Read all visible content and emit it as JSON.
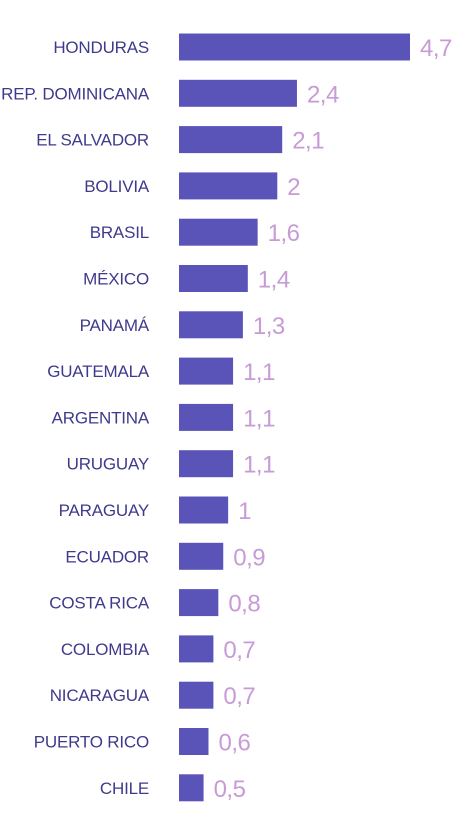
{
  "chart_data": {
    "type": "bar",
    "orientation": "horizontal",
    "categories": [
      "HONDURAS",
      "REP. DOMINICANA",
      "EL SALVADOR",
      "BOLIVIA",
      "BRASIL",
      "MÉXICO",
      "PANAMÁ",
      "GUATEMALA",
      "ARGENTINA",
      "URUGUAY",
      "PARAGUAY",
      "ECUADOR",
      "COSTA RICA",
      "COLOMBIA",
      "NICARAGUA",
      "PUERTO RICO",
      "CHILE"
    ],
    "values": [
      4.7,
      2.4,
      2.1,
      2,
      1.6,
      1.4,
      1.3,
      1.1,
      1.1,
      1.1,
      1,
      0.9,
      0.8,
      0.7,
      0.7,
      0.6,
      0.5
    ],
    "value_labels": [
      "4,7",
      "2,4",
      "2,1",
      "2",
      "1,6",
      "1,4",
      "1,3",
      "1,1",
      "1,1",
      "1,1",
      "1",
      "0,9",
      "0,8",
      "0,7",
      "0,7",
      "0,6",
      "0,5"
    ],
    "xlim": [
      0,
      4.7
    ],
    "grid": false,
    "legend": "none",
    "colors": {
      "bar": "#5b54b8",
      "category_text": "#3f3a8c",
      "value_text": "#c79bd6"
    }
  }
}
